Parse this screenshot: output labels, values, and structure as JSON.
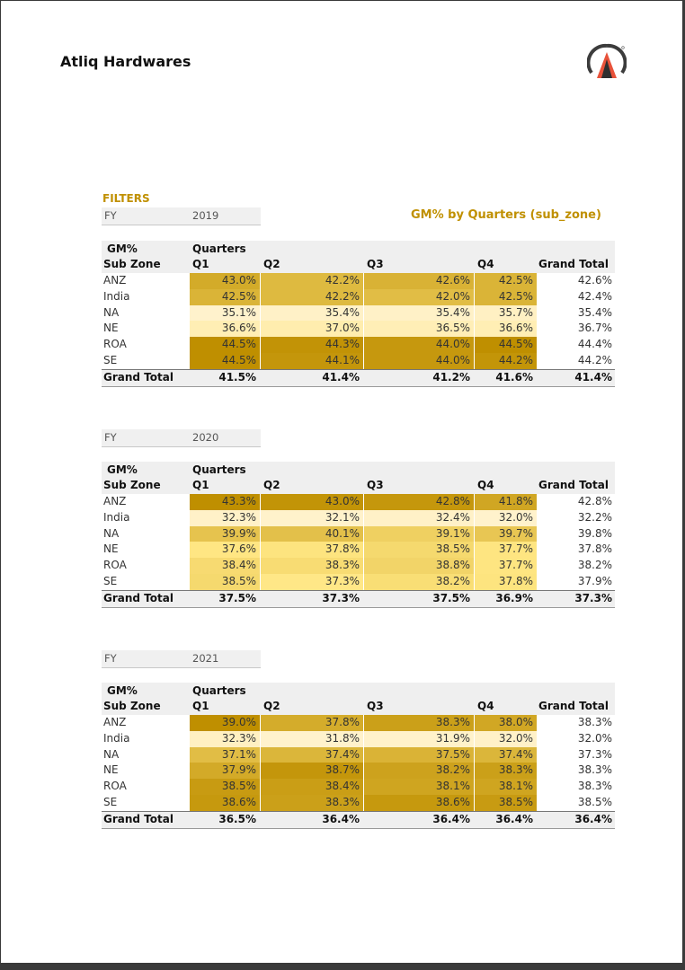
{
  "brand": "Atliq Hardwares",
  "filters_label": "FILTERS",
  "report_title": "GM%  by Quarters (sub_zone)",
  "colors": {
    "accent": "#c09000",
    "heat_low": "#fff2cc",
    "heat_high": "#bf8f00"
  },
  "pivots": [
    {
      "fy_label": "FY",
      "fy_value": "2019",
      "header": {
        "metric": "GM%",
        "quarters": "Quarters",
        "rowlabel": "Sub Zone",
        "q": [
          "Q1",
          "Q2",
          "Q3",
          "Q4"
        ],
        "grand_total": "Grand Total"
      },
      "rows": [
        {
          "label": "ANZ",
          "values": [
            "43.0%",
            "42.2%",
            "42.6%",
            "42.5%"
          ],
          "nums": [
            43.0,
            42.2,
            42.6,
            42.5
          ],
          "total": "42.6%"
        },
        {
          "label": "India",
          "values": [
            "42.5%",
            "42.2%",
            "42.0%",
            "42.5%"
          ],
          "nums": [
            42.5,
            42.2,
            42.0,
            42.5
          ],
          "total": "42.4%"
        },
        {
          "label": "NA",
          "values": [
            "35.1%",
            "35.4%",
            "35.4%",
            "35.7%"
          ],
          "nums": [
            35.1,
            35.4,
            35.4,
            35.7
          ],
          "total": "35.4%"
        },
        {
          "label": "NE",
          "values": [
            "36.6%",
            "37.0%",
            "36.5%",
            "36.6%"
          ],
          "nums": [
            36.6,
            37.0,
            36.5,
            36.6
          ],
          "total": "36.7%"
        },
        {
          "label": "ROA",
          "values": [
            "44.5%",
            "44.3%",
            "44.0%",
            "44.5%"
          ],
          "nums": [
            44.5,
            44.3,
            44.0,
            44.5
          ],
          "total": "44.4%"
        },
        {
          "label": "SE",
          "values": [
            "44.5%",
            "44.1%",
            "44.0%",
            "44.2%"
          ],
          "nums": [
            44.5,
            44.1,
            44.0,
            44.2
          ],
          "total": "44.2%"
        }
      ],
      "total_row": {
        "label": "Grand Total",
        "values": [
          "41.5%",
          "41.4%",
          "41.2%",
          "41.6%"
        ],
        "total": "41.4%"
      }
    },
    {
      "fy_label": "FY",
      "fy_value": "2020",
      "header": {
        "metric": "GM%",
        "quarters": "Quarters",
        "rowlabel": "Sub Zone",
        "q": [
          "Q1",
          "Q2",
          "Q3",
          "Q4"
        ],
        "grand_total": "Grand Total"
      },
      "rows": [
        {
          "label": "ANZ",
          "values": [
            "43.3%",
            "43.0%",
            "42.8%",
            "41.8%"
          ],
          "nums": [
            43.3,
            43.0,
            42.8,
            41.8
          ],
          "total": "42.8%"
        },
        {
          "label": "India",
          "values": [
            "32.3%",
            "32.1%",
            "32.4%",
            "32.0%"
          ],
          "nums": [
            32.3,
            32.1,
            32.4,
            32.0
          ],
          "total": "32.2%"
        },
        {
          "label": "NA",
          "values": [
            "39.9%",
            "40.1%",
            "39.1%",
            "39.7%"
          ],
          "nums": [
            39.9,
            40.1,
            39.1,
            39.7
          ],
          "total": "39.8%"
        },
        {
          "label": "NE",
          "values": [
            "37.6%",
            "37.8%",
            "38.5%",
            "37.7%"
          ],
          "nums": [
            37.6,
            37.8,
            38.5,
            37.7
          ],
          "total": "37.8%"
        },
        {
          "label": "ROA",
          "values": [
            "38.4%",
            "38.3%",
            "38.8%",
            "37.7%"
          ],
          "nums": [
            38.4,
            38.3,
            38.8,
            37.7
          ],
          "total": "38.2%"
        },
        {
          "label": "SE",
          "values": [
            "38.5%",
            "37.3%",
            "38.2%",
            "37.8%"
          ],
          "nums": [
            38.5,
            37.3,
            38.2,
            37.8
          ],
          "total": "37.9%"
        }
      ],
      "total_row": {
        "label": "Grand Total",
        "values": [
          "37.5%",
          "37.3%",
          "37.5%",
          "36.9%"
        ],
        "total": "37.3%"
      }
    },
    {
      "fy_label": "FY",
      "fy_value": "2021",
      "header": {
        "metric": "GM%",
        "quarters": "Quarters",
        "rowlabel": "Sub Zone",
        "q": [
          "Q1",
          "Q2",
          "Q3",
          "Q4"
        ],
        "grand_total": "Grand Total"
      },
      "rows": [
        {
          "label": "ANZ",
          "values": [
            "39.0%",
            "37.8%",
            "38.3%",
            "38.0%"
          ],
          "nums": [
            39.0,
            37.8,
            38.3,
            38.0
          ],
          "total": "38.3%"
        },
        {
          "label": "India",
          "values": [
            "32.3%",
            "31.8%",
            "31.9%",
            "32.0%"
          ],
          "nums": [
            32.3,
            31.8,
            31.9,
            32.0
          ],
          "total": "32.0%"
        },
        {
          "label": "NA",
          "values": [
            "37.1%",
            "37.4%",
            "37.5%",
            "37.4%"
          ],
          "nums": [
            37.1,
            37.4,
            37.5,
            37.4
          ],
          "total": "37.3%"
        },
        {
          "label": "NE",
          "values": [
            "37.9%",
            "38.7%",
            "38.2%",
            "38.3%"
          ],
          "nums": [
            37.9,
            38.7,
            38.2,
            38.3
          ],
          "total": "38.3%"
        },
        {
          "label": "ROA",
          "values": [
            "38.5%",
            "38.4%",
            "38.1%",
            "38.1%"
          ],
          "nums": [
            38.5,
            38.4,
            38.1,
            38.1
          ],
          "total": "38.3%"
        },
        {
          "label": "SE",
          "values": [
            "38.6%",
            "38.3%",
            "38.6%",
            "38.5%"
          ],
          "nums": [
            38.6,
            38.3,
            38.6,
            38.5
          ],
          "total": "38.5%"
        }
      ],
      "total_row": {
        "label": "Grand Total",
        "values": [
          "36.5%",
          "36.4%",
          "36.4%",
          "36.4%"
        ],
        "total": "36.4%"
      }
    }
  ]
}
